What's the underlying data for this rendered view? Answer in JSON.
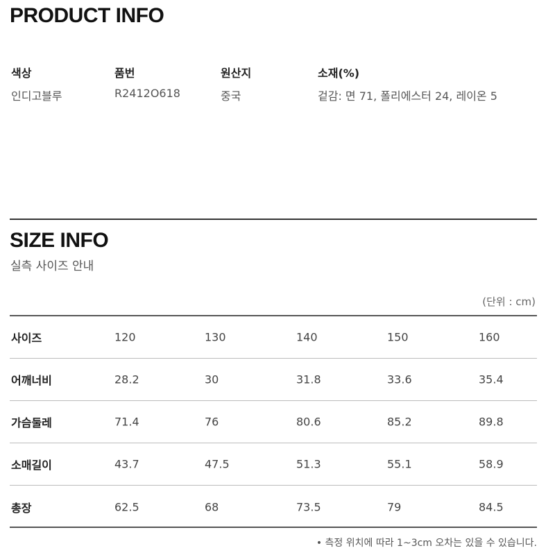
{
  "product_info": {
    "title": "PRODUCT INFO",
    "fields": [
      {
        "label": "색상",
        "value": "인디고블루"
      },
      {
        "label": "품번",
        "value": "R2412O618"
      },
      {
        "label": "원산지",
        "value": "중국"
      },
      {
        "label": "소재(%)",
        "value": "겉감: 면 71, 폴리에스터 24, 레이온 5"
      }
    ]
  },
  "size_info": {
    "title": "SIZE INFO",
    "subtitle": "실측 사이즈 안내",
    "unit": "(단위 : cm)",
    "rows": [
      {
        "label": "사이즈",
        "values": [
          "120",
          "130",
          "140",
          "150",
          "160"
        ]
      },
      {
        "label": "어깨너비",
        "values": [
          "28.2",
          "30",
          "31.8",
          "33.6",
          "35.4"
        ]
      },
      {
        "label": "가슴둘레",
        "values": [
          "71.4",
          "76",
          "80.6",
          "85.2",
          "89.8"
        ]
      },
      {
        "label": "소매길이",
        "values": [
          "43.7",
          "47.5",
          "51.3",
          "55.1",
          "58.9"
        ]
      },
      {
        "label": "총장",
        "values": [
          "62.5",
          "68",
          "73.5",
          "79",
          "84.5"
        ]
      }
    ],
    "note": "• 측정 위치에 따라 1~3cm 오차는 있을 수 있습니다."
  }
}
